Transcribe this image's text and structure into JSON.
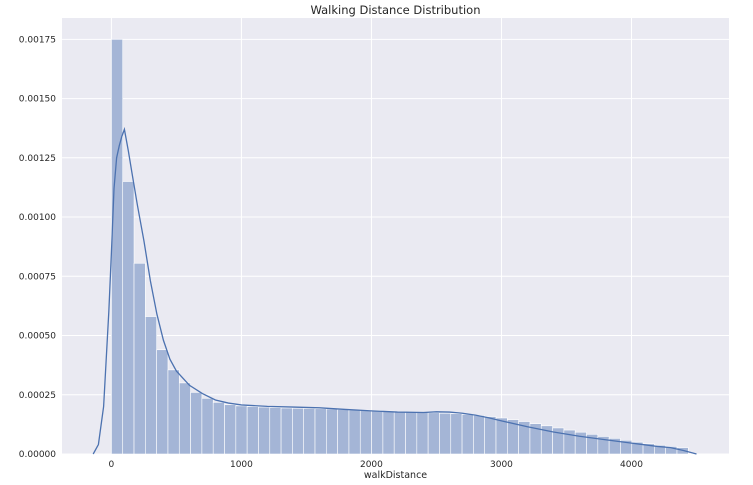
{
  "chart_data": {
    "type": "bar",
    "title": "Walking Distance Distribution",
    "xlabel": "walkDistance",
    "ylabel": "",
    "xlim": [
      -380,
      4750
    ],
    "ylim": [
      0,
      0.00184
    ],
    "x_ticks": [
      0,
      1000,
      2000,
      3000,
      4000
    ],
    "x_tick_labels": [
      "0",
      "1000",
      "2000",
      "3000",
      "4000"
    ],
    "y_ticks": [
      0,
      0.00025,
      0.0005,
      0.00075,
      0.001,
      0.00125,
      0.0015,
      0.00175
    ],
    "y_tick_labels": [
      "0.00000",
      "0.00025",
      "0.00050",
      "0.00075",
      "0.00100",
      "0.00125",
      "0.00150",
      "0.00175"
    ],
    "grid": true,
    "bin_start": 0,
    "bin_width": 87,
    "histogram": [
      0.00175,
      0.00115,
      0.000805,
      0.00058,
      0.00044,
      0.000355,
      0.0003,
      0.00026,
      0.000235,
      0.000218,
      0.000208,
      0.000203,
      0.0002,
      0.000198,
      0.000196,
      0.000194,
      0.000193,
      0.000192,
      0.000191,
      0.00019,
      0.000188,
      0.000186,
      0.000185,
      0.000183,
      0.000181,
      0.000179,
      0.000177,
      0.000176,
      0.000174,
      0.000172,
      0.00017,
      0.000167,
      0.000163,
      0.000158,
      0.000152,
      0.000145,
      0.000137,
      0.000128,
      0.000119,
      0.00011,
      0.000101,
      9.2e-05,
      8.3e-05,
      7.4e-05,
      6.6e-05,
      5.8e-05,
      5e-05,
      4.3e-05,
      3.7e-05,
      3.2e-05,
      2.7e-05
    ],
    "kde": {
      "x": [
        -140,
        -100,
        -60,
        -20,
        0,
        20,
        40,
        60,
        80,
        100,
        130,
        160,
        200,
        250,
        300,
        350,
        400,
        450,
        500,
        600,
        700,
        800,
        900,
        1000,
        1200,
        1400,
        1600,
        1800,
        2000,
        2200,
        2400,
        2500,
        2600,
        2700,
        2800,
        2900,
        3000,
        3200,
        3400,
        3600,
        3800,
        4000,
        4200,
        4300,
        4400,
        4500
      ],
      "y": [
        0,
        4e-05,
        0.0002,
        0.0006,
        0.00085,
        0.00112,
        0.00125,
        0.0013,
        0.00134,
        0.00137,
        0.00128,
        0.00118,
        0.00105,
        0.0009,
        0.00073,
        0.00059,
        0.00048,
        0.0004,
        0.00035,
        0.00029,
        0.000255,
        0.000228,
        0.000215,
        0.000207,
        0.000201,
        0.000198,
        0.000195,
        0.000188,
        0.000182,
        0.000177,
        0.000175,
        0.000178,
        0.000177,
        0.000172,
        0.000164,
        0.000153,
        0.00014,
        0.000115,
        9.3e-05,
        7.5e-05,
        6e-05,
        4.6e-05,
        3.2e-05,
        2.7e-05,
        1.5e-05,
        0
      ]
    },
    "colors": {
      "background": "#eaeaf2",
      "grid": "#ffffff",
      "bar_fill": "#a4b5d6",
      "bar_edge": "#ffffff",
      "kde_line": "#4c72b0",
      "text": "#262626"
    }
  }
}
